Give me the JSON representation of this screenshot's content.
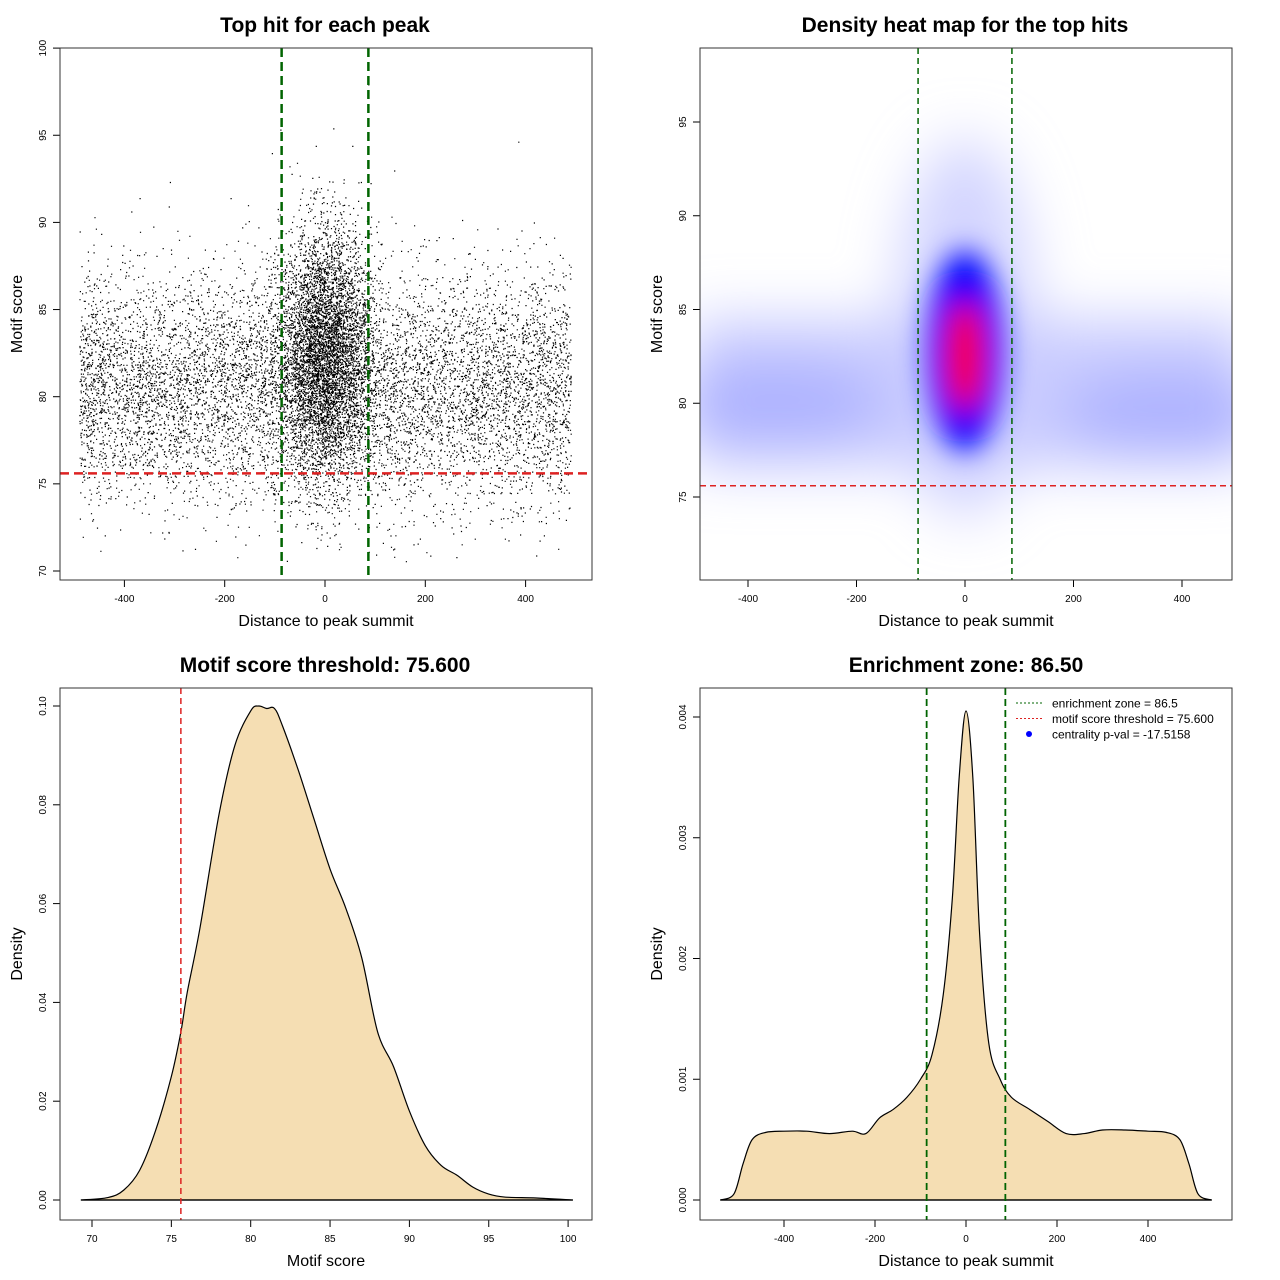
{
  "chart_data": [
    {
      "type": "scatter",
      "title": "Top hit for each peak",
      "xlabel": "Distance to peak summit",
      "ylabel": "Motif score",
      "xlim": [
        -500,
        500
      ],
      "ylim": [
        70,
        100
      ],
      "xticks": [
        -400,
        -200,
        0,
        200,
        400
      ],
      "yticks": [
        70,
        75,
        80,
        85,
        90,
        95,
        100
      ],
      "vlines": {
        "values": [
          -86.5,
          86.5
        ],
        "color": "#006400",
        "style": "dashed"
      },
      "hline": {
        "value": 75.6,
        "color": "#dd2222",
        "style": "dashed"
      },
      "point_color": "#000000",
      "description_of_points": "dense cloud of top hits, concentrated near distance 0 and score 78-90"
    },
    {
      "type": "heatmap",
      "title": "Density heat map for the top hits",
      "xlabel": "Distance to peak summit",
      "ylabel": "Motif score",
      "xlim": [
        -500,
        500
      ],
      "ylim": [
        70.5,
        99
      ],
      "xticks": [
        -400,
        -200,
        0,
        200,
        400
      ],
      "yticks": [
        75,
        80,
        85,
        90,
        95
      ],
      "colors": [
        "#ffffff",
        "#0000ff",
        "#ff0000"
      ],
      "peak": {
        "x": 0,
        "y": 82.5
      },
      "vlines": {
        "values": [
          -86.5,
          86.5
        ],
        "color": "#006400",
        "style": "dashed"
      },
      "hline": {
        "value": 75.6,
        "color": "#dd2222",
        "style": "dashed"
      }
    },
    {
      "type": "area",
      "title": "Motif score threshold: 75.600",
      "xlabel": "Motif score",
      "ylabel": "Density",
      "xlim": [
        68,
        101
      ],
      "ylim": [
        -0.002,
        0.105
      ],
      "xticks": [
        70,
        75,
        80,
        85,
        90,
        95,
        100
      ],
      "yticks": [
        "0.00",
        "0.02",
        "0.04",
        "0.06",
        "0.08",
        "0.10"
      ],
      "fill": "#f5deb3",
      "vline": {
        "value": 75.6,
        "color": "#dd2222",
        "style": "dashed"
      },
      "x": [
        69.3,
        71,
        72,
        73,
        74,
        75,
        75.6,
        76,
        76.8,
        78,
        79,
        80,
        80.5,
        81,
        81.5,
        82,
        83,
        84,
        85,
        86,
        87,
        88,
        89,
        90,
        91,
        92,
        93,
        94,
        95,
        96,
        98,
        100.3
      ],
      "y": [
        0,
        0.0005,
        0.002,
        0.006,
        0.014,
        0.025,
        0.034,
        0.042,
        0.055,
        0.078,
        0.092,
        0.099,
        0.1,
        0.0995,
        0.0995,
        0.096,
        0.087,
        0.077,
        0.067,
        0.059,
        0.049,
        0.034,
        0.027,
        0.018,
        0.011,
        0.007,
        0.005,
        0.0026,
        0.0012,
        0.0006,
        0.0004,
        0
      ]
    },
    {
      "type": "area",
      "title": "Enrichment zone: 86.50",
      "xlabel": "Distance to peak summit",
      "ylabel": "Density",
      "xlim": [
        -570,
        570
      ],
      "ylim": [
        -0.0001,
        0.0042
      ],
      "xticks": [
        -400,
        -200,
        0,
        200,
        400
      ],
      "yticks": [
        "0.000",
        "0.001",
        "0.002",
        "0.003",
        "0.004"
      ],
      "fill": "#f5deb3",
      "vlines": {
        "values": [
          -86.5,
          86.5
        ],
        "color": "#006400",
        "style": "dashed"
      },
      "x": [
        -540,
        -510,
        -490,
        -470,
        -440,
        -400,
        -350,
        -300,
        -250,
        -220,
        -190,
        -160,
        -130,
        -100,
        -75,
        -50,
        -30,
        -15,
        0,
        15,
        30,
        50,
        75,
        100,
        140,
        180,
        220,
        260,
        300,
        350,
        400,
        440,
        470,
        490,
        510,
        540
      ],
      "y": [
        0,
        5e-05,
        0.0003,
        0.0005,
        0.00056,
        0.00057,
        0.00057,
        0.00055,
        0.00057,
        0.00055,
        0.00068,
        0.00075,
        0.00085,
        0.001,
        0.0012,
        0.0017,
        0.0025,
        0.0035,
        0.00405,
        0.0035,
        0.0022,
        0.0013,
        0.001,
        0.00085,
        0.00075,
        0.00065,
        0.00055,
        0.00055,
        0.00058,
        0.00058,
        0.00057,
        0.00056,
        0.0005,
        0.0003,
        5e-05,
        0
      ],
      "legend": {
        "placement": "top-right",
        "entries": [
          {
            "label": "enrichment zone = 86.5",
            "color": "#006400",
            "style": "dotted"
          },
          {
            "label": "motif score threshold = 75.600",
            "color": "#dd2222",
            "style": "dotted"
          },
          {
            "label": "centrality p-val = -17.5158",
            "color": "#0000ff",
            "style": "point"
          }
        ]
      }
    }
  ]
}
